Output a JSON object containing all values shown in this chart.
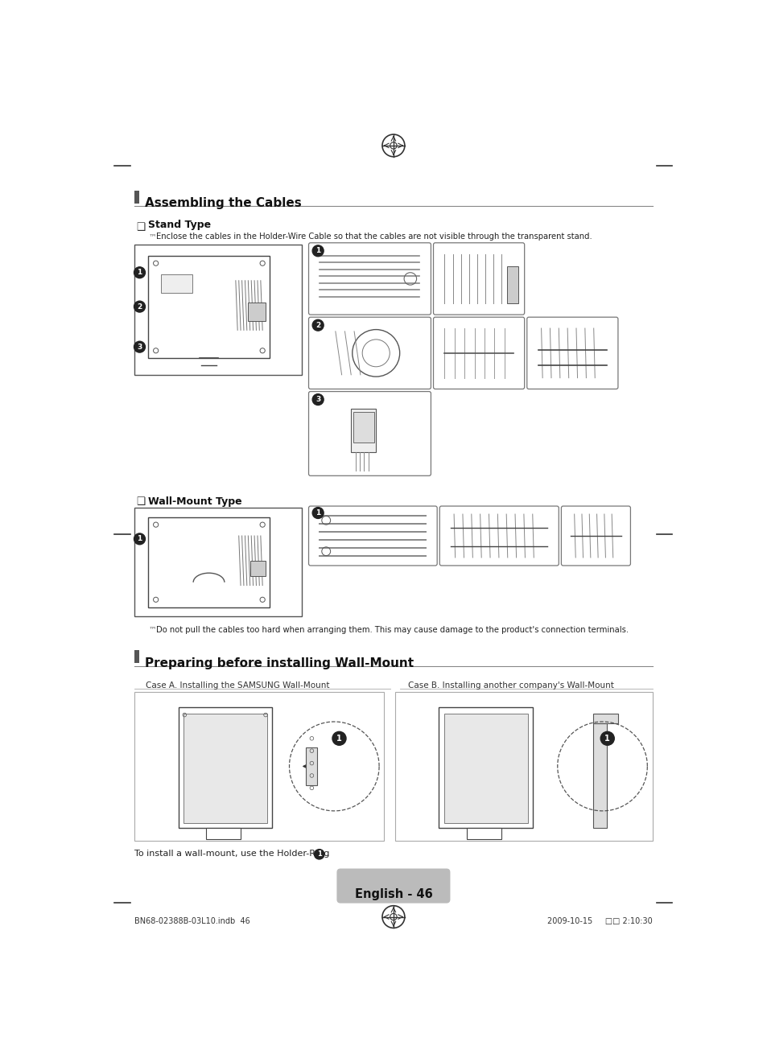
{
  "bg_color": "#ffffff",
  "page_width": 9.54,
  "page_height": 13.15,
  "title1": "Assembling the Cables",
  "title2": "Preparing before installing Wall-Mount",
  "section1_header": "Stand Type",
  "section2_header": "Wall-Mount Type",
  "note1": "Enclose the cables in the Holder-Wire Cable so that the cables are not visible through the transparent stand.",
  "note2": "Do not pull the cables too hard when arranging them. This may cause damage to the product's connection terminals.",
  "case_a_label": "Case A. Installing the SAMSUNG Wall-Mount",
  "case_b_label": "Case B. Installing another company's Wall-Mount",
  "footer_text": "English - 46",
  "footer_left": "BN68-02388B-03L10.indb  46",
  "footer_right": "2009-10-15     □□ 2:10:30",
  "header_bar_color": "#555555",
  "line_color": "#888888",
  "dark": "#333333",
  "mid_gray": "#777777",
  "light_gray": "#aaaaaa"
}
